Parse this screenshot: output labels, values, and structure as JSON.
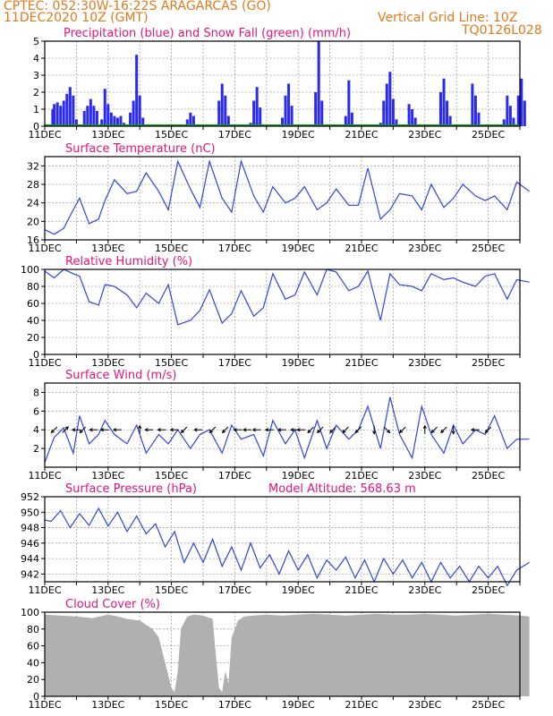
{
  "header": {
    "line1": "CPTEC:  052:30W-16:22S  ARAGARCAS (GO)",
    "line2": "11DEC2020 10Z (GMT)",
    "grid_note": "Vertical Grid Line: 10Z",
    "code": "TQ0126L028"
  },
  "colors": {
    "header": "#e07a1f",
    "title": "#e0157a",
    "precip": "#2a2af0",
    "snow": "#1a9a1a",
    "line": "#3344dd",
    "cloud": "#b0b0b0",
    "arrow": "#000000"
  },
  "chart_data": [
    {
      "type": "bar",
      "title": "Precipitation (blue) and Snow Fall (green) (mm/h)",
      "x_tick_labels": [
        "11DEC",
        "13DEC",
        "15DEC",
        "17DEC",
        "19DEC",
        "21DEC",
        "23DEC",
        "25DEC"
      ],
      "ylim": [
        0,
        5
      ],
      "y_ticks": [
        0,
        1,
        2,
        3,
        4,
        5
      ],
      "x_range_days": [
        11,
        26
      ],
      "grid": true,
      "series": [
        {
          "name": "Precipitation",
          "kind": "precip",
          "points": [
            [
              11.25,
              1.0
            ],
            [
              11.3,
              1.3
            ],
            [
              11.4,
              1.4
            ],
            [
              11.5,
              1.2
            ],
            [
              11.6,
              1.5
            ],
            [
              11.7,
              1.9
            ],
            [
              11.8,
              2.3
            ],
            [
              11.9,
              1.8
            ],
            [
              12.0,
              0.4
            ],
            [
              12.25,
              0.9
            ],
            [
              12.35,
              1.2
            ],
            [
              12.45,
              1.6
            ],
            [
              12.55,
              1.2
            ],
            [
              12.65,
              0.9
            ],
            [
              12.8,
              0.4
            ],
            [
              12.9,
              2.2
            ],
            [
              13.0,
              1.3
            ],
            [
              13.1,
              0.8
            ],
            [
              13.2,
              0.6
            ],
            [
              13.3,
              0.5
            ],
            [
              13.4,
              0.6
            ],
            [
              13.5,
              0.2
            ],
            [
              13.7,
              0.8
            ],
            [
              13.8,
              1.5
            ],
            [
              13.9,
              4.2
            ],
            [
              14.0,
              1.8
            ],
            [
              14.1,
              0.5
            ],
            [
              15.5,
              0.4
            ],
            [
              15.6,
              0.8
            ],
            [
              15.7,
              0.6
            ],
            [
              16.5,
              1.5
            ],
            [
              16.6,
              2.5
            ],
            [
              16.7,
              1.8
            ],
            [
              16.8,
              0.6
            ],
            [
              17.5,
              0.2
            ],
            [
              17.6,
              1.5
            ],
            [
              17.7,
              2.3
            ],
            [
              17.8,
              1.1
            ],
            [
              18.5,
              0.5
            ],
            [
              18.6,
              1.8
            ],
            [
              18.7,
              2.5
            ],
            [
              18.8,
              1.2
            ],
            [
              19.55,
              2.0
            ],
            [
              19.65,
              5.0
            ],
            [
              19.75,
              1.5
            ],
            [
              20.5,
              0.6
            ],
            [
              20.6,
              2.7
            ],
            [
              20.7,
              0.8
            ],
            [
              21.6,
              0.2
            ],
            [
              21.7,
              1.5
            ],
            [
              21.8,
              2.5
            ],
            [
              21.9,
              3.2
            ],
            [
              22.0,
              1.6
            ],
            [
              22.1,
              0.4
            ],
            [
              22.5,
              1.3
            ],
            [
              22.6,
              1.0
            ],
            [
              22.7,
              0.5
            ],
            [
              23.5,
              2.0
            ],
            [
              23.6,
              2.8
            ],
            [
              23.7,
              1.5
            ],
            [
              23.8,
              0.6
            ],
            [
              24.5,
              2.5
            ],
            [
              24.6,
              1.8
            ],
            [
              24.7,
              0.8
            ],
            [
              25.5,
              0.4
            ],
            [
              25.6,
              1.8
            ],
            [
              25.7,
              1.2
            ],
            [
              25.8,
              0.5
            ],
            [
              25.95,
              1.8
            ],
            [
              26.05,
              2.8
            ],
            [
              26.15,
              1.5
            ]
          ]
        },
        {
          "name": "Snow Fall",
          "kind": "snow",
          "points": [
            [
              11.0,
              0
            ],
            [
              26.3,
              0
            ]
          ]
        }
      ]
    },
    {
      "type": "line",
      "title": "Surface Temperature (nC)",
      "x_tick_labels": [
        "11DEC",
        "13DEC",
        "15DEC",
        "17DEC",
        "19DEC",
        "21DEC",
        "23DEC",
        "25DEC"
      ],
      "ylim": [
        16,
        34
      ],
      "y_ticks": [
        16,
        20,
        24,
        28,
        32
      ],
      "x_range_days": [
        11,
        26
      ],
      "grid": true,
      "x": [
        11.0,
        11.3,
        11.6,
        11.9,
        12.1,
        12.4,
        12.7,
        12.9,
        13.2,
        13.6,
        13.9,
        14.2,
        14.6,
        14.9,
        15.2,
        15.6,
        15.9,
        16.2,
        16.6,
        16.9,
        17.2,
        17.6,
        17.9,
        18.2,
        18.6,
        18.9,
        19.2,
        19.6,
        19.9,
        20.2,
        20.6,
        20.9,
        21.2,
        21.6,
        21.9,
        22.2,
        22.6,
        22.9,
        23.2,
        23.6,
        23.9,
        24.2,
        24.6,
        24.9,
        25.2,
        25.6,
        25.9,
        26.3
      ],
      "y": [
        18.2,
        17.2,
        18.5,
        22.5,
        25.0,
        19.5,
        20.5,
        24.5,
        29.0,
        26.0,
        26.5,
        30.5,
        26.5,
        22.5,
        33.0,
        27.0,
        23.0,
        33.0,
        25.0,
        22.0,
        33.0,
        25.5,
        22.0,
        27.5,
        24.0,
        25.0,
        27.5,
        22.5,
        24.0,
        27.0,
        23.5,
        23.5,
        31.5,
        20.5,
        22.5,
        26.0,
        25.5,
        22.5,
        28.0,
        23.0,
        25.0,
        28.0,
        25.5,
        24.5,
        25.5,
        22.5,
        28.5,
        26.5
      ]
    },
    {
      "type": "line",
      "title": "Relative Humidity (%)",
      "x_tick_labels": [
        "11DEC",
        "13DEC",
        "15DEC",
        "17DEC",
        "19DEC",
        "21DEC",
        "23DEC",
        "25DEC"
      ],
      "ylim": [
        0,
        100
      ],
      "y_ticks": [
        0,
        20,
        40,
        60,
        80,
        100
      ],
      "x_range_days": [
        11,
        26
      ],
      "grid": true,
      "x": [
        11.0,
        11.3,
        11.6,
        11.9,
        12.1,
        12.4,
        12.7,
        12.9,
        13.2,
        13.6,
        13.9,
        14.2,
        14.6,
        14.9,
        15.2,
        15.6,
        15.9,
        16.2,
        16.6,
        16.9,
        17.2,
        17.6,
        17.9,
        18.2,
        18.6,
        18.9,
        19.2,
        19.6,
        19.9,
        20.2,
        20.6,
        20.9,
        21.2,
        21.6,
        21.9,
        22.2,
        22.6,
        22.9,
        23.2,
        23.6,
        23.9,
        24.2,
        24.6,
        24.9,
        25.2,
        25.6,
        25.9,
        26.3
      ],
      "y": [
        98,
        90,
        100,
        95,
        92,
        62,
        58,
        82,
        80,
        70,
        55,
        72,
        60,
        82,
        35,
        40,
        52,
        76,
        37,
        48,
        75,
        45,
        55,
        95,
        65,
        70,
        97,
        70,
        100,
        97,
        75,
        80,
        98,
        40,
        95,
        82,
        80,
        75,
        95,
        88,
        90,
        85,
        80,
        92,
        95,
        65,
        88,
        85
      ]
    },
    {
      "type": "line",
      "title": "Surface Wind (m/s)",
      "x_tick_labels": [
        "11DEC",
        "13DEC",
        "15DEC",
        "17DEC",
        "19DEC",
        "21DEC",
        "23DEC",
        "25DEC"
      ],
      "ylim": [
        0,
        9
      ],
      "y_ticks": [
        2,
        4,
        6,
        8
      ],
      "x_range_days": [
        11,
        26
      ],
      "grid": true,
      "x": [
        11.0,
        11.3,
        11.6,
        11.9,
        12.1,
        12.4,
        12.7,
        12.9,
        13.2,
        13.6,
        13.9,
        14.2,
        14.6,
        14.9,
        15.2,
        15.6,
        15.9,
        16.2,
        16.6,
        16.9,
        17.2,
        17.6,
        17.9,
        18.2,
        18.6,
        18.9,
        19.2,
        19.6,
        19.9,
        20.2,
        20.6,
        20.9,
        21.2,
        21.6,
        21.9,
        22.2,
        22.6,
        22.9,
        23.2,
        23.6,
        23.9,
        24.2,
        24.6,
        24.9,
        25.2,
        25.6,
        25.9,
        26.3
      ],
      "y": [
        0.5,
        3.2,
        4.2,
        1.5,
        5.5,
        2.5,
        3.5,
        5.0,
        3.5,
        2.5,
        4.5,
        1.5,
        3.5,
        2.5,
        4.0,
        2.0,
        3.5,
        4.0,
        1.5,
        4.5,
        3.0,
        3.5,
        1.2,
        5.0,
        2.5,
        4.0,
        1.0,
        5.0,
        2.0,
        4.5,
        3.0,
        4.0,
        6.5,
        2.0,
        7.5,
        3.5,
        1.0,
        6.5,
        3.5,
        1.5,
        4.5,
        2.5,
        4.0,
        3.5,
        5.5,
        2.0,
        3.0,
        3.0
      ],
      "arrows": [
        [
          11.3,
          -1,
          -1
        ],
        [
          11.65,
          1,
          1
        ],
        [
          12.0,
          -1,
          0
        ],
        [
          12.2,
          -1,
          -1
        ],
        [
          12.55,
          -1,
          0
        ],
        [
          12.9,
          -1,
          0
        ],
        [
          13.3,
          -1,
          0
        ],
        [
          14.0,
          0,
          1
        ],
        [
          14.3,
          -1,
          0
        ],
        [
          14.7,
          -1,
          0
        ],
        [
          15.1,
          -1,
          0
        ],
        [
          15.4,
          -1,
          -1
        ],
        [
          15.85,
          -1,
          0
        ],
        [
          16.3,
          -1,
          -1
        ],
        [
          16.7,
          -1,
          -1
        ],
        [
          17.1,
          -1,
          0
        ],
        [
          17.4,
          -1,
          0
        ],
        [
          17.7,
          -1,
          0
        ],
        [
          18.1,
          -1,
          0
        ],
        [
          18.5,
          -1,
          0
        ],
        [
          18.9,
          -1,
          0
        ],
        [
          19.1,
          -1,
          0
        ],
        [
          19.4,
          -1,
          -1
        ],
        [
          19.7,
          -1,
          -1
        ],
        [
          20.1,
          -1,
          -1
        ],
        [
          20.5,
          -1,
          -1
        ],
        [
          20.9,
          -1,
          -1
        ],
        [
          21.4,
          0,
          -1
        ],
        [
          21.8,
          1,
          -1
        ],
        [
          22.3,
          -1,
          -1
        ],
        [
          23.0,
          0,
          1
        ],
        [
          23.3,
          -1,
          -1
        ],
        [
          23.6,
          -1,
          -1
        ],
        [
          23.9,
          0,
          -1
        ],
        [
          24.6,
          -1,
          0
        ],
        [
          25.0,
          -1,
          -1
        ]
      ]
    },
    {
      "type": "line",
      "title": "Surface Pressure (hPa)",
      "annotation": "Model Altitude: 568.63 m",
      "x_tick_labels": [
        "11DEC",
        "13DEC",
        "15DEC",
        "17DEC",
        "19DEC",
        "21DEC",
        "23DEC",
        "25DEC"
      ],
      "ylim": [
        941,
        952
      ],
      "y_ticks": [
        942,
        944,
        946,
        948,
        950,
        952
      ],
      "x_range_days": [
        11,
        26
      ],
      "grid": true,
      "x": [
        11.0,
        11.2,
        11.5,
        11.8,
        12.1,
        12.4,
        12.7,
        13.0,
        13.3,
        13.6,
        13.9,
        14.2,
        14.5,
        14.8,
        15.1,
        15.4,
        15.7,
        16.0,
        16.3,
        16.6,
        16.9,
        17.2,
        17.5,
        17.8,
        18.1,
        18.4,
        18.7,
        19.0,
        19.3,
        19.6,
        19.9,
        20.2,
        20.5,
        20.8,
        21.1,
        21.4,
        21.7,
        22.0,
        22.3,
        22.6,
        22.9,
        23.2,
        23.5,
        23.8,
        24.1,
        24.4,
        24.7,
        25.0,
        25.3,
        25.6,
        25.9,
        26.3
      ],
      "y": [
        949.0,
        948.8,
        950.2,
        948.0,
        949.8,
        948.3,
        950.5,
        948.2,
        950.0,
        947.5,
        949.5,
        947.2,
        948.5,
        945.5,
        947.5,
        943.5,
        946.0,
        943.5,
        946.5,
        943.0,
        945.5,
        942.5,
        946.0,
        942.8,
        944.5,
        942.0,
        945.0,
        942.5,
        944.5,
        941.5,
        943.8,
        942.5,
        944.2,
        941.5,
        943.8,
        941.0,
        944.0,
        942.0,
        943.8,
        941.5,
        943.5,
        941.0,
        943.5,
        941.5,
        943.0,
        941.0,
        943.0,
        941.5,
        943.0,
        940.5,
        942.5,
        943.5
      ]
    },
    {
      "type": "area",
      "title": "Cloud Cover (%)",
      "x_tick_labels": [
        "11DEC",
        "13DEC",
        "15DEC",
        "17DEC",
        "19DEC",
        "21DEC",
        "23DEC",
        "25DEC"
      ],
      "ylim": [
        0,
        100
      ],
      "y_ticks": [
        0,
        20,
        40,
        60,
        80,
        100
      ],
      "x_range_days": [
        11,
        26
      ],
      "grid": true,
      "x": [
        11.0,
        11.5,
        12.0,
        12.5,
        13.0,
        13.3,
        13.6,
        14.0,
        14.2,
        14.4,
        14.6,
        14.7,
        14.8,
        14.9,
        15.0,
        15.1,
        15.2,
        15.3,
        15.5,
        15.7,
        16.0,
        16.3,
        16.4,
        16.5,
        16.6,
        16.7,
        16.8,
        16.9,
        17.1,
        17.3,
        17.6,
        18.0,
        18.5,
        19.0,
        19.5,
        20.0,
        20.5,
        21.0,
        21.5,
        22.0,
        22.5,
        23.0,
        23.5,
        24.0,
        24.5,
        25.0,
        25.5,
        26.0,
        26.3
      ],
      "y": [
        97,
        96,
        95,
        93,
        97,
        95,
        92,
        90,
        85,
        80,
        70,
        55,
        40,
        25,
        10,
        5,
        30,
        80,
        95,
        97,
        96,
        92,
        50,
        10,
        5,
        30,
        15,
        70,
        90,
        95,
        96,
        97,
        96,
        97,
        98,
        97,
        96,
        97,
        98,
        97,
        97,
        98,
        97,
        96,
        97,
        98,
        97,
        96,
        95
      ]
    }
  ]
}
